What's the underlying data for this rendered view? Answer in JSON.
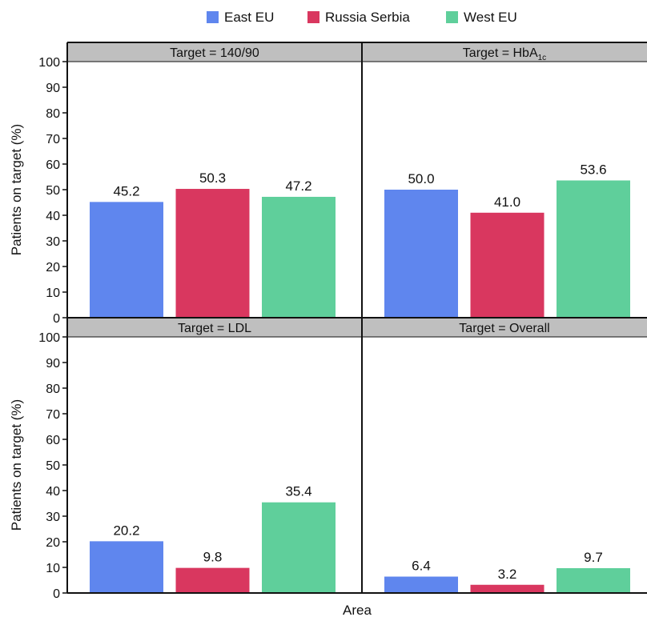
{
  "legend": [
    {
      "label": "East EU",
      "color": "#5f86ee"
    },
    {
      "label": "Russia Serbia",
      "color": "#d9375f"
    },
    {
      "label": "West EU",
      "color": "#5fcf9b"
    }
  ],
  "chart_data": {
    "type": "bar",
    "xlabel": "Area",
    "ylabel": "Patients on target (%)",
    "ylim": [
      0,
      100
    ],
    "yticks": [
      0,
      10,
      20,
      30,
      40,
      50,
      60,
      70,
      80,
      90,
      100
    ],
    "legend_position": "top",
    "categories": [
      "East EU",
      "Russia Serbia",
      "West EU"
    ],
    "colors": [
      "#5f86ee",
      "#d9375f",
      "#5fcf9b"
    ],
    "panels": [
      {
        "title": "Target = 140/90",
        "values": [
          45.2,
          50.3,
          47.2
        ],
        "labels": [
          "45.2",
          "50.3",
          "47.2"
        ]
      },
      {
        "title": "Target = HbA",
        "title_sub": "1c",
        "values": [
          50.0,
          41.0,
          53.6
        ],
        "labels": [
          "50.0",
          "41.0",
          "53.6"
        ]
      },
      {
        "title": "Target = LDL",
        "values": [
          20.2,
          9.8,
          35.4
        ],
        "labels": [
          "20.2",
          "9.8",
          "35.4"
        ]
      },
      {
        "title": "Target = Overall",
        "values": [
          6.4,
          3.2,
          9.7
        ],
        "labels": [
          "6.4",
          "3.2",
          "9.7"
        ]
      }
    ]
  }
}
